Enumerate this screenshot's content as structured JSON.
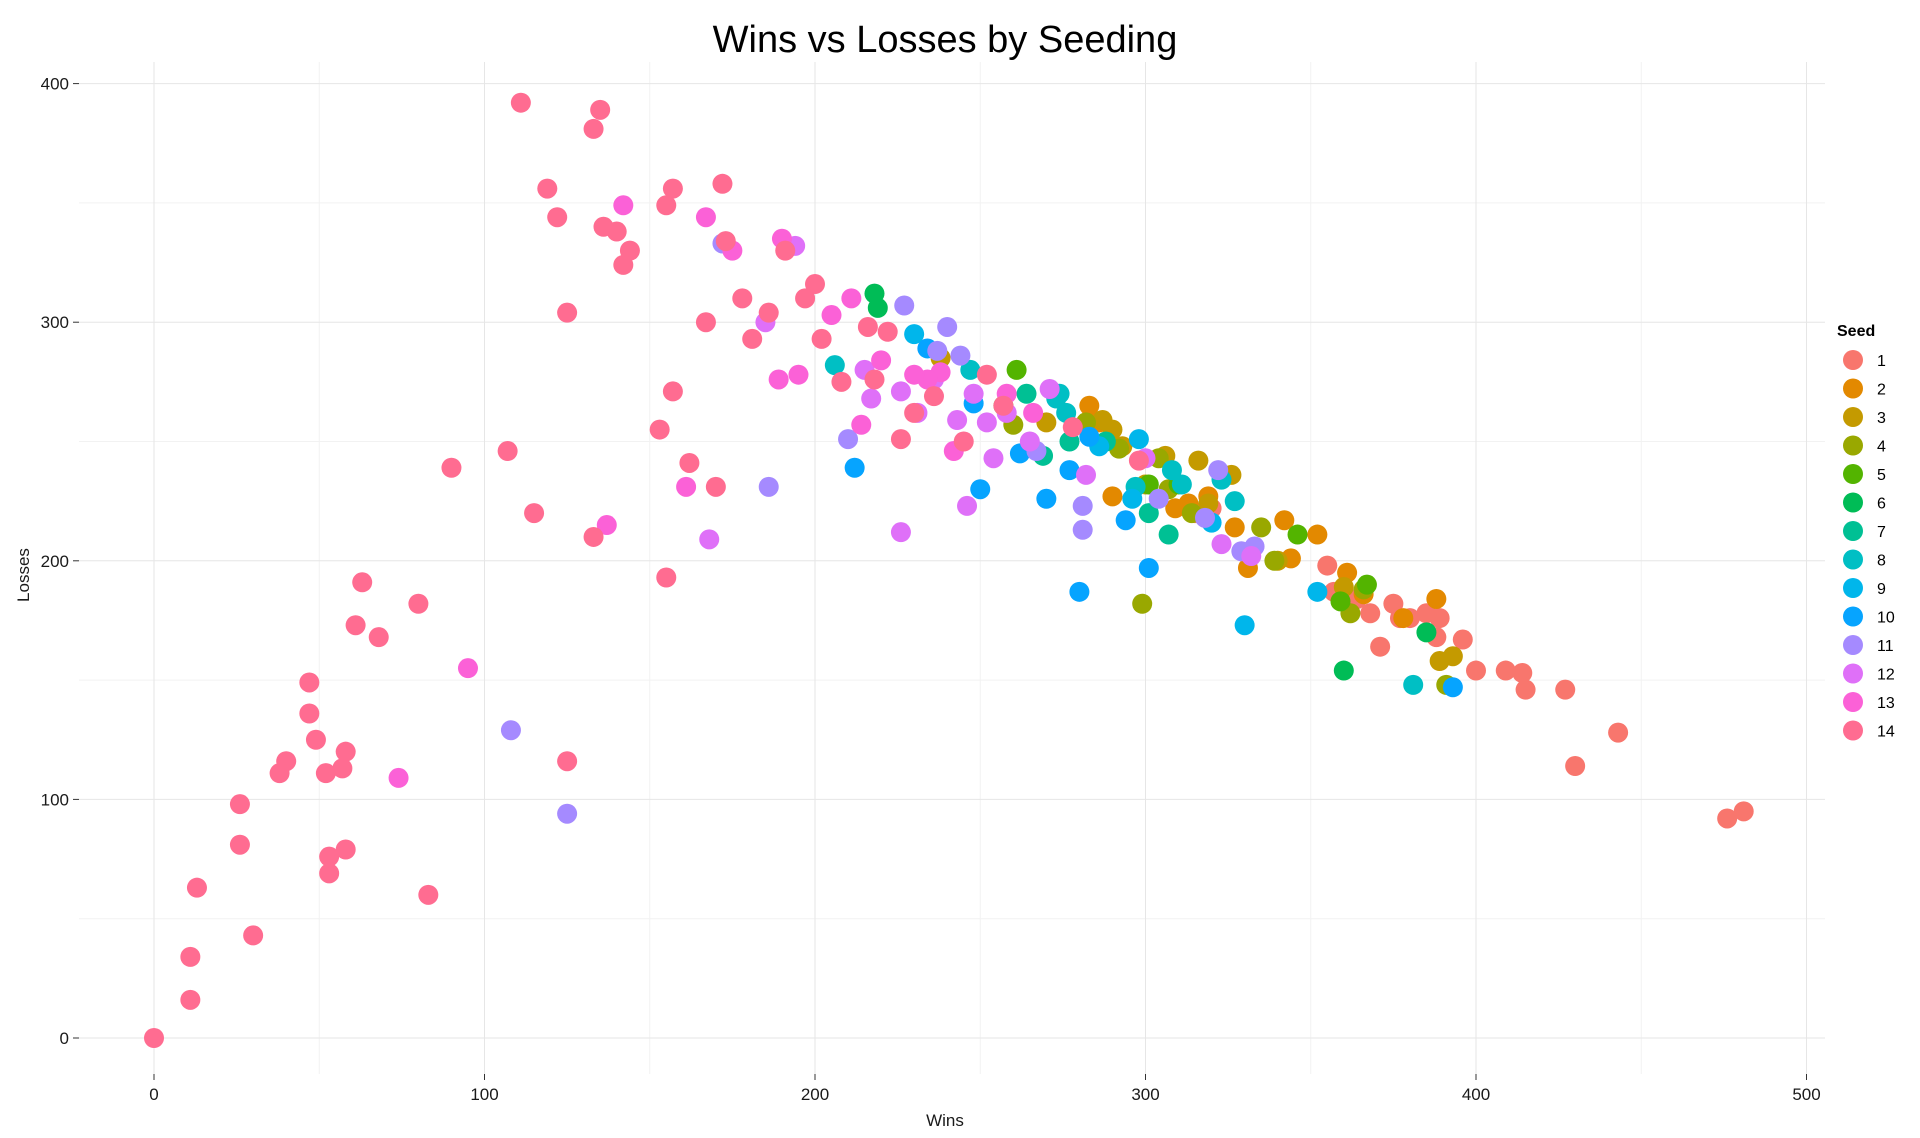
{
  "chart_data": {
    "type": "scatter",
    "title": "Wins vs Losses by Seeding",
    "xlabel": "Wins",
    "ylabel": "Losses",
    "xlim": [
      -12,
      505
    ],
    "ylim": [
      -15,
      405
    ],
    "xticks": [
      0,
      100,
      200,
      300,
      400,
      500
    ],
    "yticks": [
      0,
      100,
      200,
      300,
      400
    ],
    "grid": true,
    "legend": {
      "title": "Seed",
      "placement": "right"
    },
    "series": [
      {
        "name": "1",
        "color": "#F8766D",
        "points": [
          [
            481,
            95
          ],
          [
            476,
            92
          ],
          [
            443,
            128
          ],
          [
            430,
            114
          ],
          [
            427,
            146
          ],
          [
            415,
            146
          ],
          [
            414,
            153
          ],
          [
            409,
            154
          ],
          [
            400,
            154
          ],
          [
            396,
            167
          ],
          [
            389,
            176
          ],
          [
            388,
            168
          ],
          [
            385,
            178
          ],
          [
            380,
            176
          ],
          [
            377,
            176
          ],
          [
            375,
            182
          ],
          [
            371,
            164
          ],
          [
            368,
            178
          ],
          [
            364,
            184
          ],
          [
            357,
            187
          ],
          [
            355,
            198
          ],
          [
            320,
            222
          ],
          [
            315,
            220
          ],
          [
            313,
            222
          ]
        ]
      },
      {
        "name": "2",
        "color": "#E38900",
        "points": [
          [
            388,
            184
          ],
          [
            378,
            176
          ],
          [
            366,
            186
          ],
          [
            361,
            195
          ],
          [
            352,
            211
          ],
          [
            344,
            201
          ],
          [
            342,
            217
          ],
          [
            331,
            197
          ],
          [
            327,
            214
          ],
          [
            319,
            227
          ],
          [
            313,
            224
          ],
          [
            309,
            222
          ],
          [
            290,
            227
          ],
          [
            286,
            258
          ],
          [
            283,
            265
          ]
        ]
      },
      {
        "name": "3",
        "color": "#C49A00",
        "points": [
          [
            393,
            160
          ],
          [
            389,
            158
          ],
          [
            360,
            189
          ],
          [
            340,
            200
          ],
          [
            326,
            236
          ],
          [
            319,
            224
          ],
          [
            316,
            242
          ],
          [
            306,
            244
          ],
          [
            300,
            232
          ],
          [
            293,
            248
          ],
          [
            290,
            255
          ],
          [
            287,
            259
          ],
          [
            270,
            258
          ],
          [
            238,
            285
          ]
        ]
      },
      {
        "name": "4",
        "color": "#99A800",
        "points": [
          [
            391,
            148
          ],
          [
            366,
            188
          ],
          [
            362,
            178
          ],
          [
            339,
            200
          ],
          [
            335,
            214
          ],
          [
            314,
            220
          ],
          [
            307,
            230
          ],
          [
            304,
            243
          ],
          [
            299,
            182
          ],
          [
            292,
            247
          ],
          [
            282,
            258
          ],
          [
            260,
            257
          ]
        ]
      },
      {
        "name": "5",
        "color": "#53B400",
        "points": [
          [
            367,
            190
          ],
          [
            359,
            183
          ],
          [
            346,
            211
          ],
          [
            310,
            232
          ],
          [
            301,
            232
          ],
          [
            261,
            280
          ],
          [
            257,
            265
          ]
        ]
      },
      {
        "name": "6",
        "color": "#00BC56",
        "points": [
          [
            385,
            170
          ],
          [
            360,
            154
          ],
          [
            219,
            306
          ],
          [
            218,
            312
          ]
        ]
      },
      {
        "name": "7",
        "color": "#00C094",
        "points": [
          [
            307,
            211
          ],
          [
            301,
            220
          ],
          [
            288,
            250
          ],
          [
            277,
            250
          ],
          [
            269,
            244
          ],
          [
            264,
            270
          ]
        ]
      },
      {
        "name": "8",
        "color": "#00BFC4",
        "points": [
          [
            381,
            148
          ],
          [
            327,
            225
          ],
          [
            323,
            234
          ],
          [
            311,
            232
          ],
          [
            308,
            238
          ],
          [
            297,
            231
          ],
          [
            276,
            262
          ],
          [
            274,
            270
          ],
          [
            273,
            268
          ],
          [
            247,
            280
          ],
          [
            206,
            282
          ]
        ]
      },
      {
        "name": "9",
        "color": "#00B6EB",
        "points": [
          [
            352,
            187
          ],
          [
            330,
            173
          ],
          [
            320,
            216
          ],
          [
            298,
            251
          ],
          [
            296,
            226
          ],
          [
            286,
            248
          ],
          [
            230,
            295
          ]
        ]
      },
      {
        "name": "10",
        "color": "#06A4FF",
        "points": [
          [
            393,
            147
          ],
          [
            301,
            197
          ],
          [
            294,
            217
          ],
          [
            283,
            252
          ],
          [
            280,
            187
          ],
          [
            277,
            238
          ],
          [
            270,
            226
          ],
          [
            262,
            245
          ],
          [
            250,
            230
          ],
          [
            248,
            266
          ],
          [
            212,
            239
          ],
          [
            234,
            289
          ]
        ]
      },
      {
        "name": "11",
        "color": "#A58AFF",
        "points": [
          [
            333,
            206
          ],
          [
            329,
            204
          ],
          [
            322,
            238
          ],
          [
            318,
            218
          ],
          [
            304,
            226
          ],
          [
            281,
            213
          ],
          [
            281,
            223
          ],
          [
            267,
            246
          ],
          [
            244,
            286
          ],
          [
            240,
            298
          ],
          [
            237,
            288
          ],
          [
            227,
            307
          ],
          [
            210,
            251
          ],
          [
            186,
            231
          ],
          [
            172,
            333
          ],
          [
            108,
            129
          ],
          [
            125,
            94
          ]
        ]
      },
      {
        "name": "12",
        "color": "#DF70F8",
        "points": [
          [
            332,
            202
          ],
          [
            323,
            207
          ],
          [
            300,
            243
          ],
          [
            282,
            236
          ],
          [
            271,
            272
          ],
          [
            265,
            250
          ],
          [
            258,
            262
          ],
          [
            254,
            243
          ],
          [
            252,
            258
          ],
          [
            248,
            270
          ],
          [
            246,
            223
          ],
          [
            243,
            259
          ],
          [
            236,
            276
          ],
          [
            231,
            262
          ],
          [
            226,
            271
          ],
          [
            226,
            212
          ],
          [
            217,
            268
          ],
          [
            215,
            280
          ],
          [
            194,
            332
          ],
          [
            185,
            300
          ],
          [
            168,
            209
          ]
        ]
      },
      {
        "name": "13",
        "color": "#FB61D7",
        "points": [
          [
            266,
            262
          ],
          [
            258,
            270
          ],
          [
            242,
            246
          ],
          [
            238,
            279
          ],
          [
            234,
            276
          ],
          [
            230,
            278
          ],
          [
            220,
            284
          ],
          [
            214,
            257
          ],
          [
            211,
            310
          ],
          [
            205,
            303
          ],
          [
            195,
            278
          ],
          [
            189,
            276
          ],
          [
            190,
            335
          ],
          [
            175,
            330
          ],
          [
            167,
            344
          ],
          [
            161,
            231
          ],
          [
            142,
            349
          ],
          [
            137,
            215
          ],
          [
            95,
            155
          ],
          [
            74,
            109
          ]
        ]
      },
      {
        "name": "14",
        "color": "#FF6C91",
        "points": [
          [
            298,
            242
          ],
          [
            278,
            256
          ],
          [
            257,
            265
          ],
          [
            252,
            278
          ],
          [
            245,
            250
          ],
          [
            236,
            269
          ],
          [
            230,
            262
          ],
          [
            226,
            251
          ],
          [
            222,
            296
          ],
          [
            218,
            276
          ],
          [
            216,
            298
          ],
          [
            208,
            275
          ],
          [
            202,
            293
          ],
          [
            200,
            316
          ],
          [
            197,
            310
          ],
          [
            191,
            330
          ],
          [
            186,
            304
          ],
          [
            181,
            293
          ],
          [
            178,
            310
          ],
          [
            173,
            334
          ],
          [
            172,
            358
          ],
          [
            170,
            231
          ],
          [
            167,
            300
          ],
          [
            155,
            349
          ],
          [
            157,
            356
          ],
          [
            153,
            255
          ],
          [
            157,
            271
          ],
          [
            162,
            241
          ],
          [
            155,
            193
          ],
          [
            144,
            330
          ],
          [
            140,
            338
          ],
          [
            142,
            324
          ],
          [
            133,
            381
          ],
          [
            135,
            389
          ],
          [
            136,
            340
          ],
          [
            133,
            210
          ],
          [
            125,
            304
          ],
          [
            125,
            116
          ],
          [
            119,
            356
          ],
          [
            122,
            344
          ],
          [
            115,
            220
          ],
          [
            111,
            392
          ],
          [
            107,
            246
          ],
          [
            90,
            239
          ],
          [
            83,
            60
          ],
          [
            80,
            182
          ],
          [
            68,
            168
          ],
          [
            63,
            191
          ],
          [
            61,
            173
          ],
          [
            58,
            120
          ],
          [
            58,
            79
          ],
          [
            57,
            113
          ],
          [
            53,
            76
          ],
          [
            53,
            69
          ],
          [
            52,
            111
          ],
          [
            49,
            125
          ],
          [
            47,
            136
          ],
          [
            47,
            149
          ],
          [
            40,
            116
          ],
          [
            38,
            111
          ],
          [
            30,
            43
          ],
          [
            26,
            98
          ],
          [
            26,
            81
          ],
          [
            13,
            63
          ],
          [
            11,
            34
          ],
          [
            11,
            16
          ],
          [
            0,
            0
          ]
        ]
      }
    ]
  }
}
